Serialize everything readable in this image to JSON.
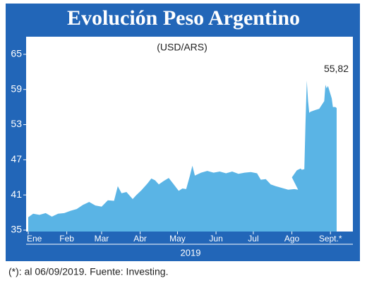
{
  "chart_data": {
    "type": "area",
    "title": "Evolución Peso Argentino",
    "subtitle": "(USD/ARS)",
    "x_label": "2019",
    "footnote": "(*): al 06/09/2019. Fuente: Investing.",
    "color": "#5ab4e5",
    "xlim": [
      1,
      249
    ],
    "xticks": [
      {
        "value": 1,
        "label": "Ene"
      },
      {
        "value": 32,
        "label": "Feb"
      },
      {
        "value": 60,
        "label": "Mar"
      },
      {
        "value": 91,
        "label": "Abr"
      },
      {
        "value": 121,
        "label": "May"
      },
      {
        "value": 152,
        "label": "Jun"
      },
      {
        "value": 182,
        "label": "Jul"
      },
      {
        "value": 213,
        "label": "Ago"
      },
      {
        "value": 244,
        "label": "Sept.*"
      }
    ],
    "ylim": [
      35,
      68
    ],
    "yticks": [
      35,
      41,
      47,
      53,
      59,
      65
    ],
    "x": [
      1,
      5,
      10,
      15,
      20,
      25,
      30,
      35,
      40,
      45,
      50,
      55,
      60,
      65,
      70,
      73,
      76,
      80,
      85,
      88,
      92,
      97,
      100,
      103,
      106,
      110,
      114,
      118,
      122,
      125,
      128,
      131,
      133,
      135,
      140,
      145,
      150,
      155,
      160,
      165,
      170,
      175,
      180,
      185,
      188,
      192,
      196,
      200,
      205,
      210,
      215,
      218,
      213,
      217,
      220,
      221,
      223,
      224,
      225,
      226,
      227,
      228,
      232,
      235,
      239,
      240,
      241,
      242,
      245,
      246,
      248,
      249
    ],
    "values": [
      37.2,
      37.8,
      37.6,
      37.9,
      37.3,
      37.8,
      37.9,
      38.3,
      38.6,
      39.3,
      39.8,
      39.2,
      39.0,
      40.1,
      40.0,
      42.5,
      41.3,
      41.5,
      40.3,
      41.0,
      41.8,
      43.0,
      43.8,
      43.5,
      42.8,
      43.4,
      43.9,
      42.8,
      41.7,
      42.1,
      42.0,
      44.3,
      46.0,
      44.3,
      44.8,
      45.1,
      44.8,
      45.0,
      44.7,
      45.0,
      44.6,
      44.8,
      44.9,
      44.7,
      43.6,
      43.7,
      42.8,
      42.5,
      42.2,
      41.9,
      42.0,
      41.9,
      44.0,
      45.2,
      45.5,
      45.3,
      45.4,
      53.5,
      60.5,
      57.0,
      55.0,
      55.2,
      55.5,
      55.7,
      57.0,
      59.8,
      59.2,
      59.6,
      57.5,
      56.0,
      56.0,
      55.82
    ],
    "value_labels": [
      null,
      null,
      null,
      null,
      null,
      null,
      null,
      null,
      null,
      null,
      null,
      null,
      null,
      null,
      null,
      null,
      null,
      null,
      null,
      null,
      null,
      null,
      null,
      null,
      null,
      null,
      null,
      null,
      null,
      null,
      null,
      null,
      null,
      null,
      null,
      null,
      null,
      null,
      null,
      null,
      null,
      null,
      null,
      null,
      null,
      null,
      null,
      null,
      null,
      null,
      null,
      null,
      null,
      null,
      null,
      null,
      null,
      null,
      null,
      null,
      null,
      null,
      null,
      null,
      null,
      null,
      null,
      null,
      null,
      null,
      null,
      "55,82"
    ]
  }
}
